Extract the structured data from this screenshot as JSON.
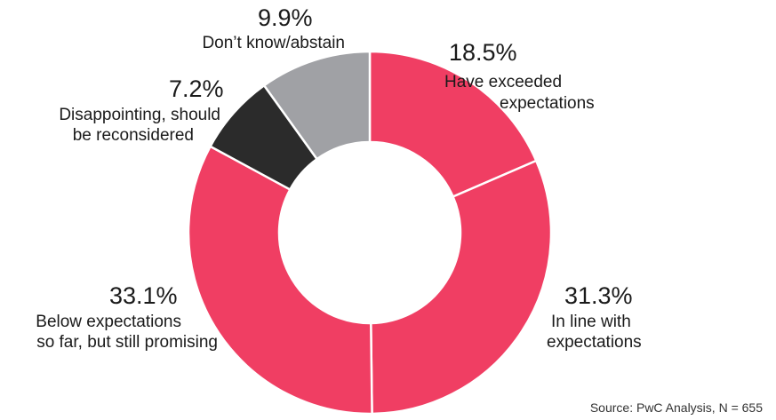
{
  "chart_data": {
    "type": "pie",
    "donut": true,
    "source": "Source: PwC Analysis, N = 655",
    "slices": [
      {
        "value": 18.5,
        "value_label": "18.5%",
        "label_lines": [
          "Have exceeded",
          "expectations"
        ],
        "color": "#F03E63"
      },
      {
        "value": 31.3,
        "value_label": "31.3%",
        "label_lines": [
          "In line with",
          "expectations"
        ],
        "color": "#F03E63"
      },
      {
        "value": 33.1,
        "value_label": "33.1%",
        "label_lines": [
          "Below expectations",
          "so far, but still promising"
        ],
        "color": "#F03E63"
      },
      {
        "value": 7.2,
        "value_label": "7.2%",
        "label_lines": [
          "Disappointing, should",
          "be reconsidered"
        ],
        "color": "#2B2B2B"
      },
      {
        "value": 9.9,
        "value_label": "9.9%",
        "label_lines": [
          "Don’t know/abstain"
        ],
        "color": "#A0A1A5"
      }
    ]
  }
}
